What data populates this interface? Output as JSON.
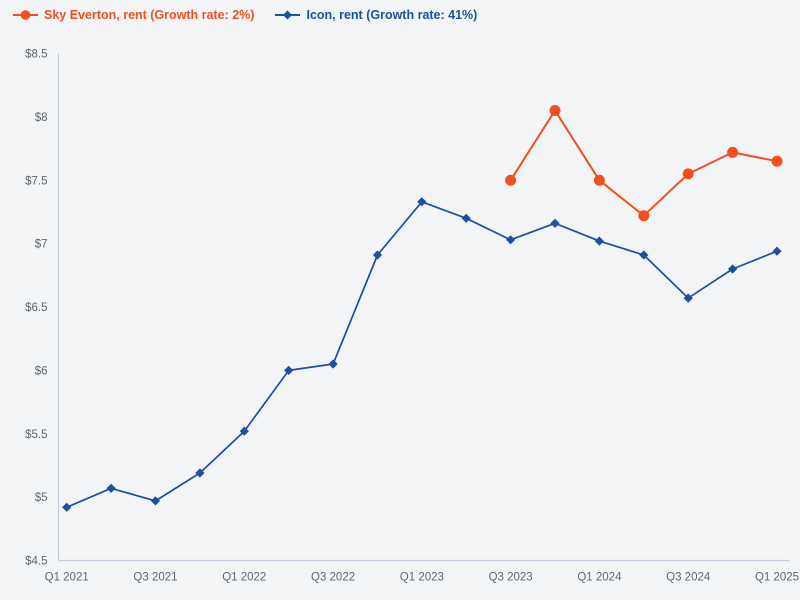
{
  "page": {
    "background": "#f3f4f6"
  },
  "legend": {
    "items": [
      {
        "label": "Sky Everton, rent (Growth rate: 2%)",
        "color": "#f1501e",
        "marker": "circle"
      },
      {
        "label": "Icon, rent (Growth rate: 41%)",
        "color": "#1f4fa0",
        "marker": "diamond"
      }
    ]
  },
  "chart_data": {
    "type": "line",
    "title": "",
    "xlabel": "",
    "ylabel": "",
    "x": [
      "Q1 2021",
      "Q2 2021",
      "Q3 2021",
      "Q4 2021",
      "Q1 2022",
      "Q2 2022",
      "Q3 2022",
      "Q4 2022",
      "Q1 2023",
      "Q2 2023",
      "Q3 2023",
      "Q4 2023",
      "Q1 2024",
      "Q2 2024",
      "Q3 2024",
      "Q4 2024",
      "Q1 2025"
    ],
    "x_tick_every": 2,
    "x_tick_labels": [
      "Q1 2021",
      "Q3 2021",
      "Q1 2022",
      "Q3 2022",
      "Q1 2023",
      "Q3 2023",
      "Q1 2024",
      "Q3 2024",
      "Q1 2025"
    ],
    "series": [
      {
        "name": "Sky Everton, rent (Growth rate: 2%)",
        "color": "#f1501e",
        "marker": "circle",
        "values": [
          null,
          null,
          null,
          null,
          null,
          null,
          null,
          null,
          null,
          null,
          7.5,
          8.05,
          7.5,
          7.22,
          7.55,
          7.72,
          7.65
        ]
      },
      {
        "name": "Icon, rent (Growth rate: 41%)",
        "color": "#1f4fa0",
        "marker": "diamond",
        "values": [
          4.92,
          5.07,
          4.97,
          5.19,
          5.52,
          6.0,
          6.05,
          6.91,
          7.33,
          7.2,
          7.03,
          7.16,
          7.02,
          6.91,
          6.57,
          6.8,
          6.94
        ]
      }
    ],
    "ylim": [
      4.5,
      8.5
    ],
    "y_ticks": [
      {
        "value": 4.5,
        "label": "$4.5"
      },
      {
        "value": 5,
        "label": "$5"
      },
      {
        "value": 5.5,
        "label": "$5.5"
      },
      {
        "value": 6,
        "label": "$6"
      },
      {
        "value": 6.5,
        "label": "$6.5"
      },
      {
        "value": 7,
        "label": "$7"
      },
      {
        "value": 7.5,
        "label": "$7.5"
      },
      {
        "value": 8,
        "label": "$8"
      },
      {
        "value": 8.5,
        "label": "$8.5"
      }
    ],
    "grid": false,
    "legend_position": "top-left",
    "axis_color": "#c2cddf",
    "tick_label_color": "#5f6773"
  }
}
